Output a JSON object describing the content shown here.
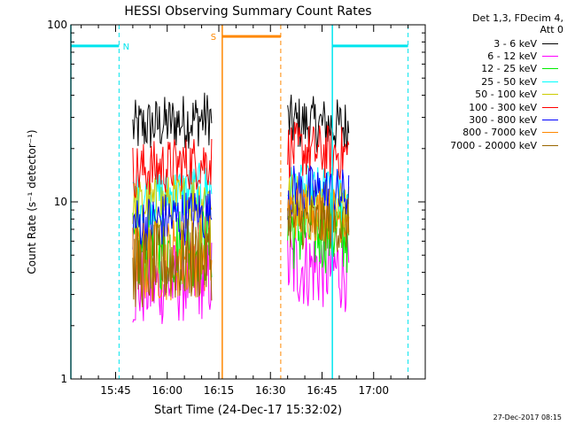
{
  "chart_data": {
    "type": "line",
    "title": "HESSI Observing Summary Count Rates",
    "xlabel": "Start Time (24-Dec-17 15:32:02)",
    "ylabel": "Count Rate (s⁻¹ detector⁻¹)",
    "ylog": true,
    "ylim": [
      1,
      100
    ],
    "xlim": [
      "15:32",
      "17:15"
    ],
    "x_ticks": [
      "15:45",
      "16:00",
      "16:15",
      "16:30",
      "16:45",
      "17:00"
    ],
    "y_ticks": [
      "1",
      "10",
      "100"
    ],
    "grid": false,
    "legend_position": "right",
    "legend_header": "Det 1,3, FDecim 4,\nAtt 0",
    "segments": [
      [
        "15:50",
        "16:13"
      ],
      [
        "16:35",
        "16:53"
      ]
    ],
    "series": [
      {
        "name": "3 - 6 keV",
        "color": "#000000",
        "level_segment1": 28,
        "level_segment2": 27
      },
      {
        "name": "6 - 12 keV",
        "color": "#ff00ff",
        "level_segment1": 3.5,
        "level_segment2": 4.2
      },
      {
        "name": "12 - 25 keV",
        "color": "#00ee00",
        "level_segment1": 5.5,
        "level_segment2": 6.8
      },
      {
        "name": "25 - 50 keV",
        "color": "#00ffff",
        "level_segment1": 11,
        "level_segment2": 11
      },
      {
        "name": "50 - 100 keV",
        "color": "#cccc00",
        "level_segment1": 10,
        "level_segment2": 10
      },
      {
        "name": "100 - 300 keV",
        "color": "#ff0000",
        "level_segment1": 16,
        "level_segment2": 19
      },
      {
        "name": "300 - 800 keV",
        "color": "#0000ff",
        "level_segment1": 8,
        "level_segment2": 11
      },
      {
        "name": "800 - 7000 keV",
        "color": "#ff8800",
        "level_segment1": 4.8,
        "level_segment2": 8.5
      },
      {
        "name": "7000 - 20000 keV",
        "color": "#996600",
        "level_segment1": 4.5,
        "level_segment2": 7.5
      }
    ],
    "markers": {
      "night": {
        "label": "N",
        "color": "#00e5ee",
        "solid": [
          "15:32",
          "16:48"
        ],
        "dashed": [
          "15:46",
          "17:10"
        ],
        "bars": [
          [
            "15:32",
            "15:46"
          ],
          [
            "16:48",
            "17:10"
          ]
        ]
      },
      "saa": {
        "label": "S",
        "color": "#ff8800",
        "solid": [
          "16:16"
        ],
        "dashed": [
          "16:33"
        ],
        "bars": [
          [
            "16:16",
            "16:33"
          ]
        ]
      }
    }
  },
  "footer": {
    "timestamp": "27-Dec-2017 08:15"
  }
}
